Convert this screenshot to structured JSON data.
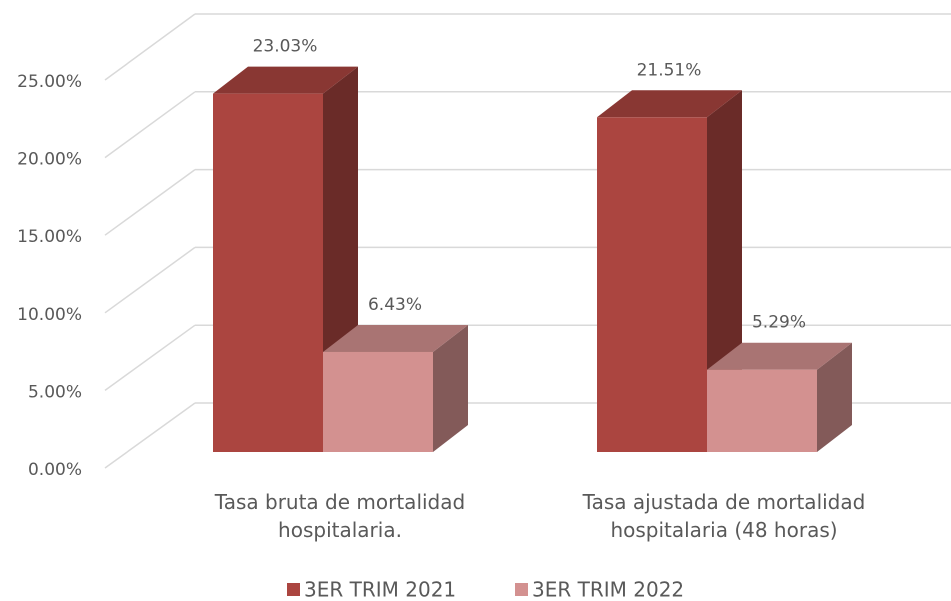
{
  "chart_data": {
    "type": "bar3d",
    "categories": [
      "Tasa bruta de mortalidad\nhospitalaria.",
      "Tasa ajustada de mortalidad\nhospitalaria (48 horas)"
    ],
    "series": [
      {
        "name": "3ER TRIM 2021",
        "color": "#ab4540",
        "values": [
          23.03,
          21.51
        ],
        "value_labels": [
          "23.03%",
          "21.51%"
        ]
      },
      {
        "name": "3ER TRIM 2022",
        "color": "#d39190",
        "values": [
          6.43,
          5.29
        ],
        "value_labels": [
          "6.43%",
          "5.29%"
        ]
      }
    ],
    "ylim": [
      0,
      25
    ],
    "yticks": [
      {
        "value": 0,
        "label": "0.00%"
      },
      {
        "value": 5,
        "label": "5.00%"
      },
      {
        "value": 10,
        "label": "10.00%"
      },
      {
        "value": 15,
        "label": "15.00%"
      },
      {
        "value": 20,
        "label": "20.00%"
      },
      {
        "value": 25,
        "label": "25.00%"
      }
    ],
    "grid": true,
    "legend": "bottom"
  }
}
